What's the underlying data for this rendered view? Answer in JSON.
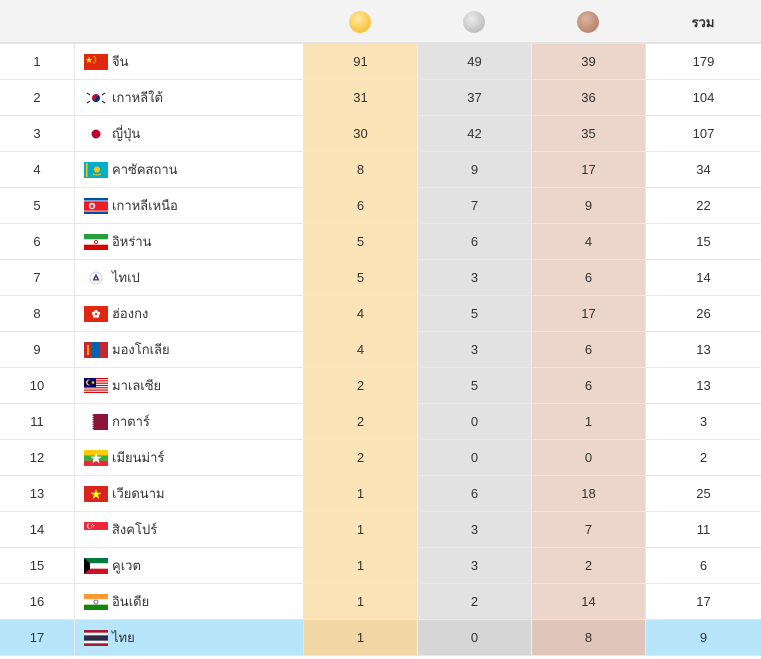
{
  "header": {
    "medals": [
      {
        "name": "gold-medal-icon",
        "color": "#f9c93c"
      },
      {
        "name": "silver-medal-icon",
        "color": "#c4c4c4"
      },
      {
        "name": "bronze-medal-icon",
        "color": "#c08b6e"
      }
    ],
    "total_label": "รวม"
  },
  "colors": {
    "gold_column": "#fae4b7",
    "silver_column": "#e2e2e2",
    "bronze_column": "#ecd6cc",
    "highlight_row": "#b7e6fa"
  },
  "rows": [
    {
      "rank": "1",
      "country": "จีน",
      "flag": "china-flag-icon",
      "gold": "91",
      "silver": "49",
      "bronze": "39",
      "total": "179"
    },
    {
      "rank": "2",
      "country": "เกาหลีใต้",
      "flag": "south-korea-flag-icon",
      "gold": "31",
      "silver": "37",
      "bronze": "36",
      "total": "104"
    },
    {
      "rank": "3",
      "country": "ญี่ปุ่น",
      "flag": "japan-flag-icon",
      "gold": "30",
      "silver": "42",
      "bronze": "35",
      "total": "107"
    },
    {
      "rank": "4",
      "country": "คาซัคสถาน",
      "flag": "kazakhstan-flag-icon",
      "gold": "8",
      "silver": "9",
      "bronze": "17",
      "total": "34"
    },
    {
      "rank": "5",
      "country": "เกาหลีเหนือ",
      "flag": "north-korea-flag-icon",
      "gold": "6",
      "silver": "7",
      "bronze": "9",
      "total": "22"
    },
    {
      "rank": "6",
      "country": "อิหร่าน",
      "flag": "iran-flag-icon",
      "gold": "5",
      "silver": "6",
      "bronze": "4",
      "total": "15"
    },
    {
      "rank": "7",
      "country": "ไทเป",
      "flag": "chinese-taipei-flag-icon",
      "gold": "5",
      "silver": "3",
      "bronze": "6",
      "total": "14"
    },
    {
      "rank": "8",
      "country": "ฮ่องกง",
      "flag": "hong-kong-flag-icon",
      "gold": "4",
      "silver": "5",
      "bronze": "17",
      "total": "26"
    },
    {
      "rank": "9",
      "country": "มองโกเลีย",
      "flag": "mongolia-flag-icon",
      "gold": "4",
      "silver": "3",
      "bronze": "6",
      "total": "13"
    },
    {
      "rank": "10",
      "country": "มาเลเซีย",
      "flag": "malaysia-flag-icon",
      "gold": "2",
      "silver": "5",
      "bronze": "6",
      "total": "13"
    },
    {
      "rank": "11",
      "country": "กาตาร์",
      "flag": "qatar-flag-icon",
      "gold": "2",
      "silver": "0",
      "bronze": "1",
      "total": "3"
    },
    {
      "rank": "12",
      "country": "เมียนม่าร์",
      "flag": "myanmar-flag-icon",
      "gold": "2",
      "silver": "0",
      "bronze": "0",
      "total": "2"
    },
    {
      "rank": "13",
      "country": "เวียดนาม",
      "flag": "vietnam-flag-icon",
      "gold": "1",
      "silver": "6",
      "bronze": "18",
      "total": "25"
    },
    {
      "rank": "14",
      "country": "สิงคโปร์",
      "flag": "singapore-flag-icon",
      "gold": "1",
      "silver": "3",
      "bronze": "7",
      "total": "11"
    },
    {
      "rank": "15",
      "country": "คูเวต",
      "flag": "kuwait-flag-icon",
      "gold": "1",
      "silver": "3",
      "bronze": "2",
      "total": "6"
    },
    {
      "rank": "16",
      "country": "อินเดีย",
      "flag": "india-flag-icon",
      "gold": "1",
      "silver": "2",
      "bronze": "14",
      "total": "17"
    },
    {
      "rank": "17",
      "country": "ไทย",
      "flag": "thailand-flag-icon",
      "gold": "1",
      "silver": "0",
      "bronze": "8",
      "total": "9",
      "highlight": true
    }
  ]
}
